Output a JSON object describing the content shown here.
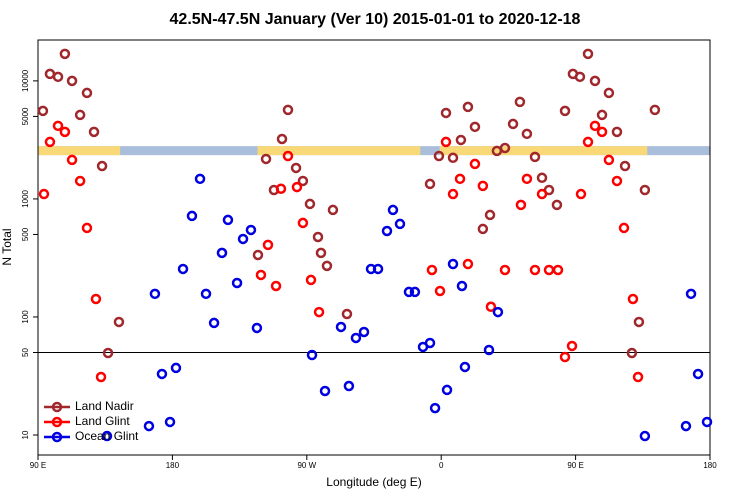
{
  "chart_data": {
    "type": "scatter",
    "title": "42.5N-47.5N January (Ver 10)   2015-01-01 to 2020-12-18",
    "xlabel": "Longitude (deg E)",
    "ylabel": "N Total",
    "xlim": [
      90,
      540
    ],
    "ylim": [
      6.77,
      22200
    ],
    "log_y": true,
    "legend": "bottom-left",
    "xticks": [
      {
        "value": 90,
        "label": "90 E"
      },
      180,
      {
        "value": 270,
        "label": "90 W"
      },
      {
        "value": 360,
        "label": "0"
      },
      {
        "value": 450,
        "label": "90 E"
      },
      {
        "value": 540,
        "label": "180"
      }
    ],
    "yticks": [
      10,
      50,
      100,
      500,
      1000,
      5000,
      10000
    ],
    "hline": 50,
    "band": {
      "ylim": [
        2350,
        2800
      ],
      "ocean_color": "#a9bedb",
      "land_color": "#f9d878",
      "land": [
        [
          90,
          145
        ],
        [
          237,
          346
        ],
        [
          359,
          498
        ]
      ]
    },
    "series": [
      {
        "name": "Land Nadir",
        "color": "#a0282d",
        "x": [
          93.3,
          98.0,
          103.4,
          108.0,
          112.8,
          118.2,
          122.8,
          127.5,
          132.9,
          136.9,
          144.2,
          237.3,
          242.7,
          248.0,
          253.4,
          257.4,
          262.8,
          267.4,
          272.1,
          277.5,
          279.5,
          283.5,
          287.5,
          296.9,
          352.5,
          358.5,
          363.2,
          367.9,
          373.2,
          377.9,
          382.6,
          387.9,
          392.7,
          397.3,
          402.7,
          408.1,
          412.7,
          417.4,
          422.8,
          427.5,
          432.2,
          437.5,
          442.9,
          448.2,
          452.9,
          458.3,
          463.0,
          467.7,
          472.3,
          477.7,
          483.1,
          487.7,
          492.4,
          496.4,
          503.1
        ],
        "values": [
          5570,
          11460,
          10820,
          16940,
          10000,
          5150,
          7910,
          3700,
          1900,
          49.5,
          90.7,
          335,
          2180,
          1190,
          3220,
          5680,
          1830,
          1420,
          907,
          476,
          349,
          271,
          807,
          106,
          1340,
          2310,
          5350,
          2230,
          3160,
          6020,
          4080,
          557,
          732,
          2550,
          2700,
          4320,
          6640,
          3560,
          2270,
          1510,
          1190,
          890,
          5570,
          11460,
          10820,
          16940,
          10000,
          5150,
          7910,
          3700,
          1900,
          49.5,
          90.7,
          1190,
          5680
        ]
      },
      {
        "name": "Land Glint",
        "color": "#ff0000",
        "x": [
          94.0,
          98.0,
          103.4,
          108.0,
          112.8,
          118.2,
          122.8,
          128.8,
          132.2,
          239.3,
          244.0,
          249.4,
          252.7,
          257.4,
          263.4,
          267.4,
          272.8,
          278.2,
          353.8,
          359.2,
          363.2,
          367.9,
          372.6,
          377.9,
          382.6,
          387.9,
          393.3,
          402.7,
          413.4,
          417.4,
          422.8,
          427.5,
          432.2,
          438.2,
          442.9,
          447.6,
          453.6,
          458.3,
          463.0,
          467.7,
          472.3,
          477.7,
          482.4,
          488.4,
          491.8
        ],
        "values": [
          1100,
          3040,
          4160,
          3700,
          2140,
          1420,
          568,
          142,
          31,
          227,
          408,
          183,
          1220,
          2310,
          1260,
          626,
          206,
          110,
          250,
          166,
          3040,
          1100,
          1480,
          281,
          1980,
          1290,
          122,
          250,
          890,
          1480,
          250,
          1100,
          250,
          250,
          45.8,
          56.8,
          1100,
          3040,
          4160,
          3700,
          2140,
          1420,
          568,
          142,
          31
        ]
      },
      {
        "name": "Ocean Glint",
        "color": "#0000e0",
        "x": [
          136.2,
          164.3,
          168.3,
          173.0,
          182.4,
          178.4,
          187.1,
          193.1,
          198.5,
          202.5,
          207.9,
          213.2,
          217.2,
          223.3,
          227.3,
          232.6,
          236.6,
          273.5,
          282.2,
          292.9,
          298.2,
          302.9,
          308.3,
          313.0,
          317.7,
          323.7,
          327.7,
          332.4,
          338.4,
          342.4,
          347.8,
          352.5,
          355.9,
          363.9,
          367.9,
          373.9,
          375.9,
          392.0,
          398.0,
          496.4,
          523.9,
          527.3,
          532.0,
          538.0
        ],
        "values": [
          9.8,
          11.9,
          157,
          32.9,
          37,
          12.9,
          255,
          718,
          1480,
          157,
          89,
          349,
          664,
          194,
          458,
          546,
          80.7,
          47.6,
          23.6,
          82.3,
          26,
          66.4,
          74.6,
          255,
          255,
          535,
          807,
          614,
          163,
          163,
          55.7,
          60.2,
          16.9,
          24.1,
          281,
          183,
          37.7,
          52.5,
          110,
          9.8,
          11.9,
          157,
          32.9,
          12.9
        ]
      }
    ]
  }
}
